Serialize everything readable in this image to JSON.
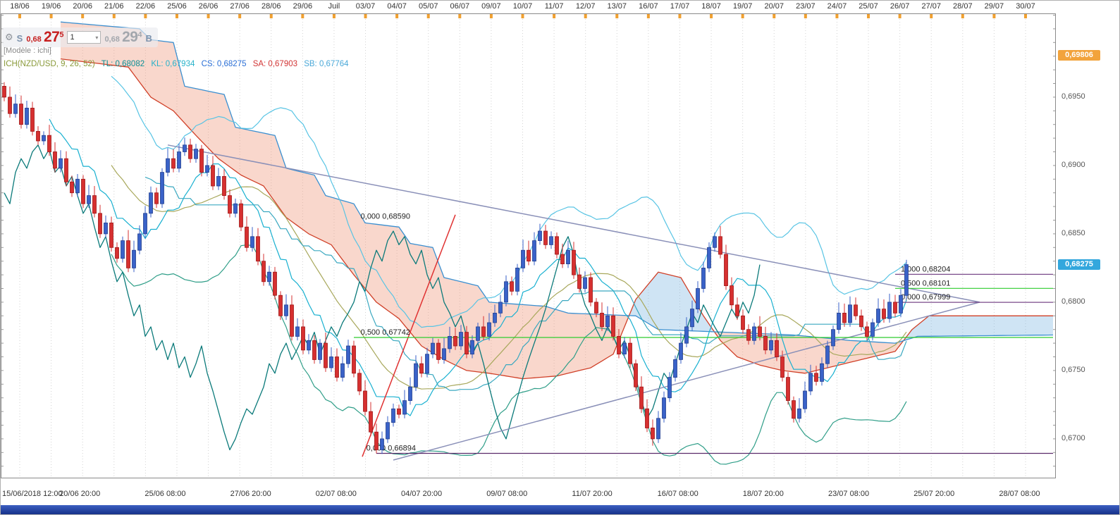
{
  "model_label": "[Modèle : ichi]",
  "trade_widget": {
    "sell_label": "S",
    "sell_big": "0,68",
    "sell_pips": "27",
    "sell_frac": "5",
    "quantity": "1",
    "buy_big": "0,68",
    "buy_pips": "29",
    "buy_frac": "4",
    "buy_label": "B"
  },
  "legend": {
    "instrument": "ICH(NZD/USD, 9, 26, 52)",
    "tl": "TL: 0,68082",
    "kl": "KL: 0,67934",
    "cs": "CS: 0,68275",
    "sa": "SA: 0,67903",
    "sb": "SB: 0,67764"
  },
  "chart_data": {
    "type": "candlestick",
    "instrument": "NZD/USD",
    "indicator": "Ichimoku (9, 26, 52)",
    "ylim": [
      0.66711,
      0.70113
    ],
    "first_open": 0.6958,
    "closes": [
      0.695,
      0.6938,
      0.6945,
      0.693,
      0.6942,
      0.6925,
      0.6918,
      0.6922,
      0.691,
      0.6898,
      0.6905,
      0.6888,
      0.688,
      0.689,
      0.6872,
      0.6878,
      0.6865,
      0.685,
      0.6858,
      0.684,
      0.6832,
      0.6845,
      0.6825,
      0.6838,
      0.685,
      0.6865,
      0.688,
      0.6872,
      0.6895,
      0.6905,
      0.6898,
      0.691,
      0.6915,
      0.6905,
      0.6912,
      0.6895,
      0.69,
      0.6885,
      0.6892,
      0.6878,
      0.6865,
      0.6872,
      0.6855,
      0.684,
      0.6848,
      0.683,
      0.6815,
      0.6822,
      0.6805,
      0.679,
      0.6798,
      0.6775,
      0.6782,
      0.6765,
      0.6772,
      0.6758,
      0.677,
      0.6752,
      0.676,
      0.6745,
      0.6755,
      0.6768,
      0.6748,
      0.6735,
      0.672,
      0.6705,
      0.6692,
      0.67,
      0.6712,
      0.6722,
      0.6718,
      0.6728,
      0.6738,
      0.6755,
      0.6748,
      0.6762,
      0.677,
      0.6758,
      0.6766,
      0.6775,
      0.6768,
      0.6778,
      0.6762,
      0.6772,
      0.6782,
      0.6775,
      0.6785,
      0.6792,
      0.68,
      0.6815,
      0.6808,
      0.6825,
      0.6838,
      0.683,
      0.6845,
      0.6852,
      0.6842,
      0.6848,
      0.6835,
      0.6828,
      0.6838,
      0.682,
      0.681,
      0.6818,
      0.68,
      0.6792,
      0.6782,
      0.679,
      0.6775,
      0.6762,
      0.677,
      0.6755,
      0.6738,
      0.6722,
      0.6708,
      0.67,
      0.6715,
      0.673,
      0.6745,
      0.6758,
      0.677,
      0.6782,
      0.6795,
      0.681,
      0.6825,
      0.684,
      0.6848,
      0.6835,
      0.6812,
      0.6798,
      0.679,
      0.678,
      0.6772,
      0.6782,
      0.6775,
      0.6765,
      0.6772,
      0.676,
      0.6745,
      0.6728,
      0.6715,
      0.6722,
      0.6735,
      0.6748,
      0.6742,
      0.6755,
      0.6768,
      0.678,
      0.6792,
      0.6785,
      0.6798,
      0.679,
      0.6782,
      0.6775,
      0.6785,
      0.6795,
      0.6788,
      0.68,
      0.6792,
      0.6805,
      0.68275
    ],
    "wick_overrides": {
      "lows": [
        [
          66,
          0.66894
        ],
        [
          115,
          0.6695
        ]
      ],
      "highs": [
        [
          160,
          0.6831
        ]
      ]
    },
    "ichimoku_values": {
      "TL": 0.68082,
      "KL": 0.67934,
      "CS": 0.68275,
      "SA": 0.67903,
      "SB": 0.67764
    },
    "cloud": {
      "start": 10,
      "end": 186,
      "spanA": [
        [
          10,
          0.6978
        ],
        [
          22,
          0.6972
        ],
        [
          26,
          0.695
        ],
        [
          30,
          0.694
        ],
        [
          34,
          0.6922
        ],
        [
          38,
          0.6905
        ],
        [
          42,
          0.6893
        ],
        [
          46,
          0.6885
        ],
        [
          50,
          0.6862
        ],
        [
          54,
          0.685
        ],
        [
          58,
          0.6842
        ],
        [
          62,
          0.682
        ],
        [
          66,
          0.68
        ],
        [
          70,
          0.6788
        ],
        [
          74,
          0.6768
        ],
        [
          78,
          0.6758
        ],
        [
          82,
          0.675
        ],
        [
          86,
          0.6748
        ],
        [
          92,
          0.6744
        ],
        [
          98,
          0.6746
        ],
        [
          104,
          0.6752
        ],
        [
          108,
          0.6762
        ],
        [
          112,
          0.6802
        ],
        [
          116,
          0.6822
        ],
        [
          120,
          0.6818
        ],
        [
          124,
          0.679
        ],
        [
          127,
          0.6772
        ],
        [
          130,
          0.676
        ],
        [
          134,
          0.6754
        ],
        [
          138,
          0.675
        ],
        [
          142,
          0.6748
        ],
        [
          146,
          0.6752
        ],
        [
          150,
          0.6756
        ],
        [
          154,
          0.676
        ],
        [
          158,
          0.6764
        ],
        [
          161,
          0.678
        ],
        [
          164,
          0.679
        ],
        [
          186,
          0.679
        ]
      ],
      "spanB": [
        [
          10,
          0.7005
        ],
        [
          24,
          0.7
        ],
        [
          26,
          0.6992
        ],
        [
          30,
          0.699
        ],
        [
          32,
          0.6958
        ],
        [
          39,
          0.6952
        ],
        [
          41,
          0.6928
        ],
        [
          48,
          0.6922
        ],
        [
          50,
          0.6898
        ],
        [
          55,
          0.6893
        ],
        [
          57,
          0.6878
        ],
        [
          62,
          0.6872
        ],
        [
          64,
          0.6858
        ],
        [
          70,
          0.6855
        ],
        [
          72,
          0.6843
        ],
        [
          76,
          0.684
        ],
        [
          78,
          0.6818
        ],
        [
          84,
          0.6812
        ],
        [
          86,
          0.68
        ],
        [
          96,
          0.6797
        ],
        [
          100,
          0.6792
        ],
        [
          112,
          0.679
        ],
        [
          116,
          0.678
        ],
        [
          128,
          0.6778
        ],
        [
          140,
          0.6776
        ],
        [
          150,
          0.6772
        ],
        [
          158,
          0.677
        ],
        [
          162,
          0.6775
        ],
        [
          186,
          0.6776
        ]
      ]
    },
    "fib_annotations": [
      {
        "label": "0,000 0,68590",
        "price": 0.6859,
        "label_i": 72,
        "anchor": "end",
        "span": null,
        "color": null
      },
      {
        "label": "0,500 0,67742",
        "price": 0.67742,
        "label_i": 72,
        "anchor": "end",
        "span": [
          62,
          186
        ],
        "color": "#2ecc2e"
      },
      {
        "label": "0,000 0,66894",
        "price": 0.66894,
        "label_i": 73,
        "anchor": "end",
        "span": [
          66,
          186
        ],
        "color": "#5a2a6a"
      },
      {
        "label": "1,000 0,68204",
        "price": 0.68204,
        "label_i": 159,
        "anchor": "start",
        "span": [
          158,
          186
        ],
        "color": "#7a4a8a"
      },
      {
        "label": "0,500 0,68101",
        "price": 0.68101,
        "label_i": 159,
        "anchor": "start",
        "span": [
          158,
          186
        ],
        "color": "#2ecc2e"
      },
      {
        "label": "0,000 0,67999",
        "price": 0.67999,
        "label_i": 159,
        "anchor": "start",
        "span": [
          158,
          186
        ],
        "color": "#7a4a8a"
      }
    ],
    "trendlines": [
      {
        "i1": 29,
        "p1": 0.6915,
        "i2": 173,
        "p2": 0.68,
        "color": "#8a90b8",
        "w": 1.5
      },
      {
        "i1": 69,
        "p1": 0.66845,
        "i2": 173,
        "p2": 0.68,
        "color": "#8a90b8",
        "w": 1.5
      },
      {
        "i1": 63.5,
        "p1": 0.6687,
        "i2": 80,
        "p2": 0.6864,
        "color": "#e03232",
        "w": 1.5
      }
    ],
    "axes": {
      "top_dates": [
        "18/06",
        "19/06",
        "20/06",
        "21/06",
        "22/06",
        "25/06",
        "26/06",
        "27/06",
        "28/06",
        "29/06",
        "Juil",
        "03/07",
        "04/07",
        "05/07",
        "06/07",
        "09/07",
        "10/07",
        "11/07",
        "12/07",
        "13/07",
        "16/07",
        "17/07",
        "18/07",
        "19/07",
        "20/07",
        "23/07",
        "24/07",
        "25/07",
        "26/07",
        "27/07",
        "28/07",
        "29/07",
        "30/07"
      ],
      "bottom_labels": [
        "15/06/2018 12:00",
        "20/06 20:00",
        "25/06 08:00",
        "27/06 20:00",
        "02/07 08:00",
        "04/07 20:00",
        "09/07 08:00",
        "11/07 20:00",
        "16/07 08:00",
        "18/07 20:00",
        "23/07 08:00",
        "25/07 20:00",
        "28/07 08:00"
      ],
      "right_prices": [
        {
          "label": "0,6950",
          "price": 0.695
        },
        {
          "label": "0,6900",
          "price": 0.69
        },
        {
          "label": "0,6850",
          "price": 0.685
        },
        {
          "label": "0,6800",
          "price": 0.68
        },
        {
          "label": "0,6750",
          "price": 0.675
        },
        {
          "label": "0,6700",
          "price": 0.67
        }
      ]
    },
    "price_badges": [
      {
        "name": "high-price-badge",
        "label": "0,69806",
        "price": 0.69806,
        "color": "#f2a33c"
      },
      {
        "name": "last-price-badge",
        "label": "0,68275",
        "price": 0.68275,
        "color": "#33a7dd"
      }
    ],
    "colors": {
      "up": "#3a62c8",
      "up_border": "#23408f",
      "down": "#d63030",
      "down_border": "#a01818",
      "cloud_bear": "rgba(238,150,120,0.38)",
      "cloud_bull": "rgba(130,185,225,0.38)",
      "spanA": "#d04028",
      "spanB": "#3a8fd0",
      "tenkan": "#18b0d0",
      "kijun": "#3aa8c0",
      "chikou": "#0b7a7a",
      "boll_upper": "#58c4e4",
      "boll_lower": "#2f9e88",
      "boll_mid": "#a8a85c",
      "session_tick": "#f0a030",
      "fib_green": "#2ecc2e",
      "fib_purple": "#7a4a8a"
    }
  }
}
